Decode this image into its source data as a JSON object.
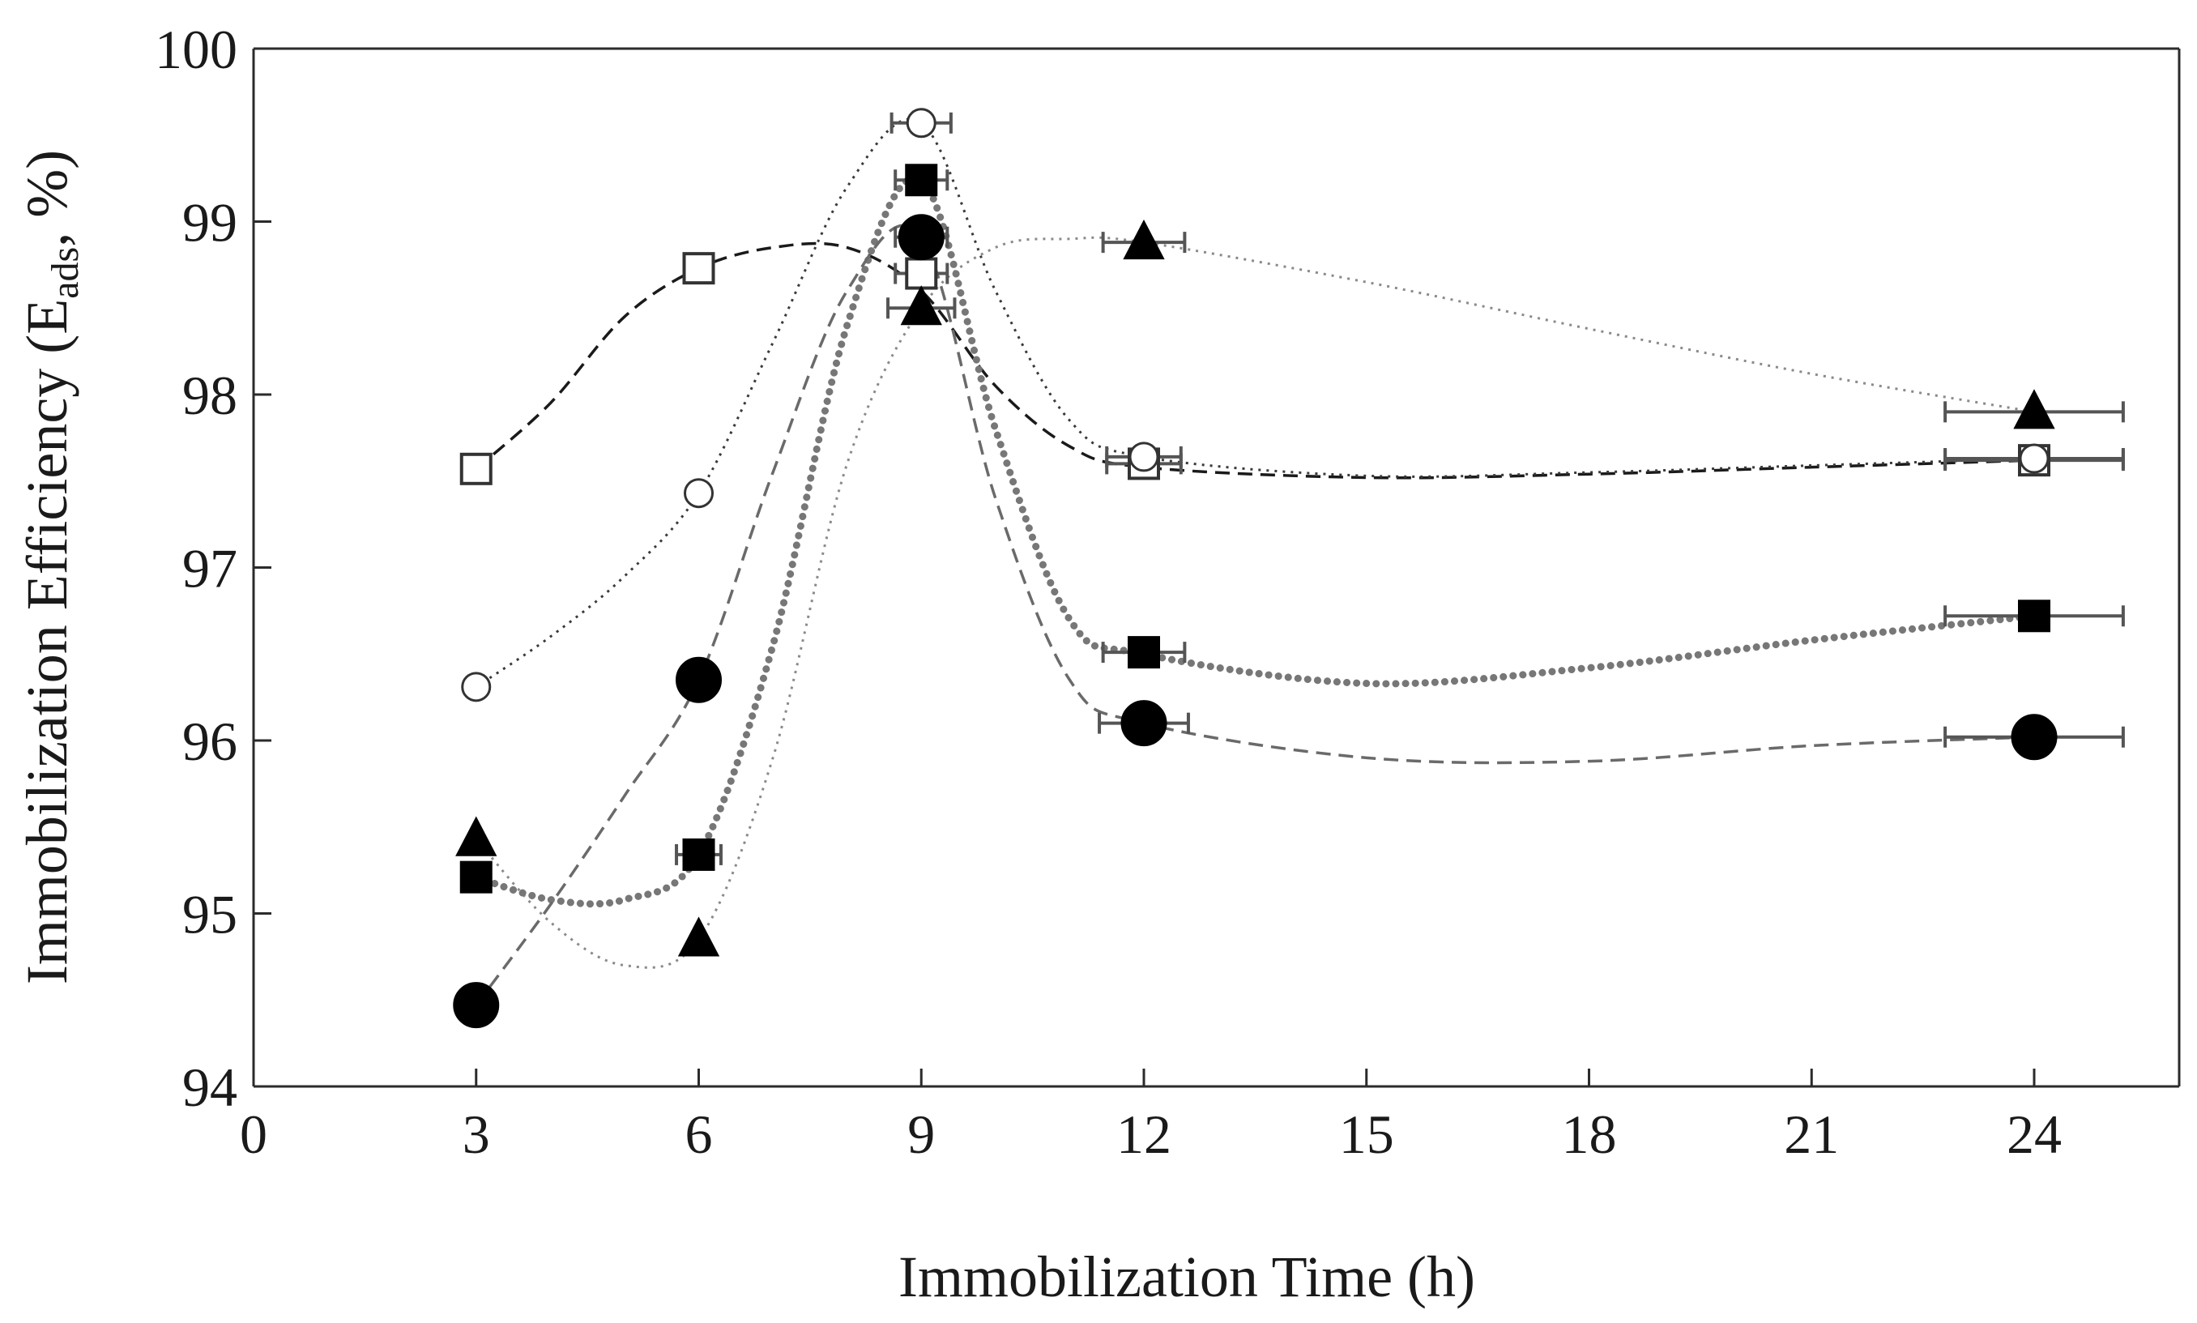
{
  "chart_data": {
    "type": "scatter",
    "title": "",
    "xlabel": "Immobilization Time (h)",
    "ylabel_prefix": "Immobilization Efficiency (E",
    "ylabel_sub": "ads",
    "ylabel_suffix": ", %)",
    "xlim": [
      0,
      26
    ],
    "ylim": [
      94,
      100
    ],
    "xticks": [
      "0",
      "3",
      "6",
      "9",
      "12",
      "15",
      "18",
      "21",
      "24"
    ],
    "yticks": [
      "94",
      "95",
      "96",
      "97",
      "98",
      "99",
      "100"
    ],
    "grid": false,
    "legend": "none",
    "series": [
      {
        "name": "open square",
        "marker": "square",
        "filled": false,
        "line": "dashed",
        "color": "#222222",
        "x": [
          3,
          6,
          9,
          12,
          24
        ],
        "y": [
          97.57,
          98.73,
          98.7,
          97.6,
          97.62
        ],
        "xerr": [
          0.05,
          0.1,
          0.35,
          0.5,
          1.2
        ],
        "curve": [
          [
            3,
            97.57
          ],
          [
            4,
            97.95
          ],
          [
            5,
            98.45
          ],
          [
            6,
            98.73
          ],
          [
            7,
            98.85
          ],
          [
            8,
            98.85
          ],
          [
            9,
            98.6
          ],
          [
            10,
            98.05
          ],
          [
            11,
            97.7
          ],
          [
            12,
            97.58
          ],
          [
            15,
            97.52
          ],
          [
            18,
            97.54
          ],
          [
            21,
            97.58
          ],
          [
            24,
            97.62
          ]
        ]
      },
      {
        "name": "open circle",
        "marker": "circle",
        "filled": false,
        "line": "dotted",
        "color": "#333333",
        "x": [
          3,
          6,
          9,
          12,
          24
        ],
        "y": [
          96.31,
          97.43,
          99.57,
          97.64,
          97.63
        ],
        "xerr": [
          0.05,
          0.1,
          0.4,
          0.5,
          1.2
        ],
        "curve": [
          [
            3,
            96.31
          ],
          [
            4,
            96.6
          ],
          [
            5,
            96.95
          ],
          [
            6,
            97.43
          ],
          [
            7,
            98.3
          ],
          [
            8,
            99.2
          ],
          [
            9,
            99.57
          ],
          [
            10,
            98.6
          ],
          [
            11,
            97.85
          ],
          [
            12,
            97.64
          ],
          [
            15,
            97.53
          ],
          [
            18,
            97.55
          ],
          [
            21,
            97.59
          ],
          [
            24,
            97.63
          ]
        ]
      },
      {
        "name": "filled triangle",
        "marker": "triangle",
        "filled": true,
        "line": "dotted",
        "color": "#000000",
        "x": [
          3,
          6,
          9,
          12,
          24
        ],
        "y": [
          95.43,
          94.85,
          98.5,
          98.88,
          97.9
        ],
        "xerr": [
          0.05,
          0.1,
          0.45,
          0.55,
          1.2
        ],
        "curve": [
          [
            3,
            95.43
          ],
          [
            4,
            94.95
          ],
          [
            5,
            94.7
          ],
          [
            6,
            94.85
          ],
          [
            7,
            95.9
          ],
          [
            8,
            97.6
          ],
          [
            9,
            98.5
          ],
          [
            10,
            98.85
          ],
          [
            11,
            98.9
          ],
          [
            12,
            98.88
          ],
          [
            15,
            98.65
          ],
          [
            18,
            98.38
          ],
          [
            21,
            98.12
          ],
          [
            24,
            97.9
          ]
        ]
      },
      {
        "name": "filled square",
        "marker": "square",
        "filled": true,
        "line": "thick-dotted",
        "color": "#000000",
        "x": [
          3,
          6,
          9,
          12,
          24
        ],
        "y": [
          95.21,
          95.34,
          99.24,
          96.51,
          96.72
        ],
        "xerr": [
          0.05,
          0.3,
          0.35,
          0.55,
          1.2
        ],
        "curve": [
          [
            3,
            95.21
          ],
          [
            4,
            95.08
          ],
          [
            5,
            95.08
          ],
          [
            6,
            95.34
          ],
          [
            7,
            96.55
          ],
          [
            8,
            98.4
          ],
          [
            9,
            99.24
          ],
          [
            10,
            97.8
          ],
          [
            11,
            96.7
          ],
          [
            12,
            96.5
          ],
          [
            15,
            96.33
          ],
          [
            18,
            96.42
          ],
          [
            21,
            96.58
          ],
          [
            24,
            96.72
          ]
        ]
      },
      {
        "name": "filled circle",
        "marker": "circle",
        "filled": true,
        "line": "dashed",
        "color": "#000000",
        "x": [
          3,
          6,
          9,
          12,
          24
        ],
        "y": [
          94.47,
          96.35,
          98.91,
          96.1,
          96.02
        ],
        "xerr": [
          0.05,
          0.1,
          0.35,
          0.6,
          1.2
        ],
        "curve": [
          [
            3,
            94.47
          ],
          [
            4,
            95.05
          ],
          [
            5,
            95.68
          ],
          [
            6,
            96.35
          ],
          [
            7,
            97.55
          ],
          [
            8,
            98.6
          ],
          [
            9,
            98.91
          ],
          [
            10,
            97.4
          ],
          [
            11,
            96.35
          ],
          [
            12,
            96.1
          ],
          [
            15,
            95.9
          ],
          [
            18,
            95.88
          ],
          [
            21,
            95.97
          ],
          [
            24,
            96.02
          ]
        ]
      }
    ]
  }
}
